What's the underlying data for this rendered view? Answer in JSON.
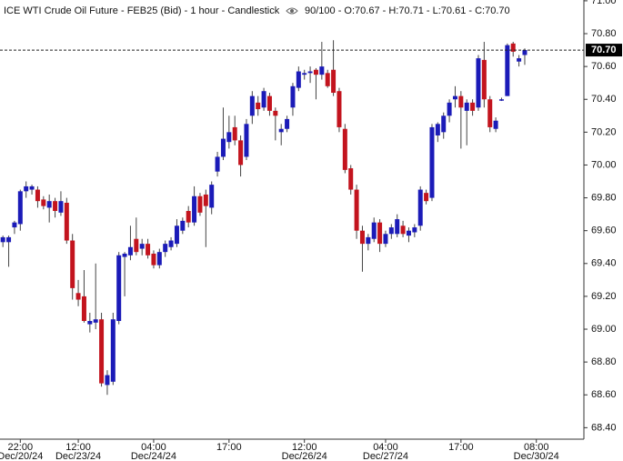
{
  "chart_data": {
    "type": "candlestick",
    "title": "ICE WTI Crude Oil Future - FEB25 (Bid) - 1 hour - Candlestick",
    "info": "90/100 - O:70.67 - H:70.71 - L:70.61 - C:70.70",
    "up_color": "#1b1bb8",
    "down_color": "#c3141e",
    "open": [
      69.53,
      69.53,
      69.62,
      69.64,
      69.84,
      69.85,
      69.85,
      69.79,
      69.74,
      69.78,
      69.71,
      69.77,
      69.54,
      69.22,
      69.2,
      69.03,
      69.04,
      69.06,
      68.66,
      68.68,
      69.05,
      69.44,
      69.45,
      69.55,
      69.49,
      69.52,
      69.46,
      69.39,
      69.47,
      69.5,
      69.52,
      69.6,
      69.72,
      69.65,
      69.81,
      69.82,
      69.74,
      69.96,
      70.05,
      70.14,
      70.23,
      70.15,
      70.05,
      70.3,
      70.38,
      70.35,
      70.42,
      70.33,
      70.2,
      70.22,
      70.35,
      70.47,
      70.55,
      70.56,
      70.58,
      70.55,
      70.56,
      70.58,
      70.45,
      70.22,
      69.98,
      69.85,
      69.6,
      69.52,
      69.55,
      69.65,
      69.52,
      69.58,
      69.58,
      69.63,
      69.57,
      69.59,
      69.63,
      69.83,
      69.8,
      70.18,
      70.2,
      70.3,
      70.4,
      70.42,
      70.33,
      70.38,
      70.35,
      70.64,
      70.4,
      70.22,
      70.395,
      70.42,
      70.74,
      70.63,
      70.67
    ],
    "high": [
      69.57,
      69.57,
      69.66,
      69.85,
      69.9,
      69.88,
      69.87,
      69.81,
      69.82,
      69.8,
      69.84,
      69.8,
      69.58,
      69.3,
      69.36,
      69.1,
      69.4,
      69.1,
      68.75,
      69.1,
      69.47,
      69.47,
      69.63,
      69.68,
      69.55,
      69.55,
      69.48,
      69.49,
      69.54,
      69.56,
      69.67,
      69.68,
      69.75,
      69.87,
      69.83,
      69.85,
      69.9,
      70.08,
      70.35,
      70.3,
      70.3,
      70.18,
      70.28,
      70.45,
      70.42,
      70.47,
      70.44,
      70.35,
      70.25,
      70.3,
      70.5,
      70.6,
      70.58,
      70.6,
      70.59,
      70.75,
      70.58,
      70.76,
      70.47,
      70.25,
      70.0,
      69.88,
      69.63,
      69.58,
      69.68,
      69.67,
      69.6,
      69.64,
      69.7,
      69.66,
      69.62,
      69.64,
      69.87,
      69.85,
      70.25,
      70.26,
      70.32,
      70.4,
      70.48,
      70.45,
      70.4,
      70.4,
      70.67,
      70.75,
      70.42,
      70.29,
      70.41,
      70.74,
      70.75,
      70.67,
      70.71
    ],
    "low": [
      69.5,
      69.38,
      69.58,
      69.6,
      69.8,
      69.82,
      69.74,
      69.73,
      69.65,
      69.68,
      69.69,
      69.52,
      69.18,
      69.14,
      69.04,
      68.98,
      69.0,
      68.65,
      68.6,
      68.66,
      69.03,
      69.2,
      69.42,
      69.45,
      69.45,
      69.43,
      69.37,
      69.37,
      69.44,
      69.48,
      69.5,
      69.58,
      69.62,
      69.63,
      69.69,
      69.5,
      69.7,
      69.93,
      70.03,
      70.1,
      70.12,
      69.93,
      70.03,
      70.25,
      70.3,
      70.33,
      70.3,
      70.15,
      70.12,
      70.2,
      70.3,
      70.45,
      70.52,
      70.5,
      70.4,
      70.52,
      70.47,
      70.42,
      70.2,
      69.95,
      69.82,
      69.55,
      69.35,
      69.48,
      69.53,
      69.47,
      69.5,
      69.55,
      69.56,
      69.56,
      69.53,
      69.56,
      69.6,
      69.76,
      69.78,
      70.14,
      70.16,
      70.26,
      70.35,
      70.1,
      70.12,
      70.3,
      70.33,
      70.35,
      70.2,
      70.2,
      70.39,
      70.42,
      70.66,
      70.6,
      70.61
    ],
    "close": [
      69.56,
      69.56,
      69.65,
      69.84,
      69.87,
      69.87,
      69.78,
      69.75,
      69.78,
      69.72,
      69.78,
      69.54,
      69.25,
      69.18,
      69.05,
      69.05,
      69.06,
      68.67,
      68.72,
      69.06,
      69.45,
      69.46,
      69.5,
      69.47,
      69.52,
      69.45,
      69.39,
      69.47,
      69.52,
      69.54,
      69.63,
      69.66,
      69.65,
      69.81,
      69.71,
      69.75,
      69.88,
      70.05,
      70.16,
      70.2,
      70.15,
      70.0,
      70.25,
      70.42,
      70.34,
      70.45,
      70.33,
      70.3,
      70.22,
      70.28,
      70.48,
      70.57,
      70.56,
      70.57,
      70.55,
      70.6,
      70.48,
      70.44,
      70.23,
      69.97,
      69.85,
      69.6,
      69.52,
      69.56,
      69.65,
      69.52,
      69.58,
      69.62,
      69.67,
      69.58,
      69.6,
      69.62,
      69.85,
      69.78,
      70.23,
      70.25,
      70.3,
      70.38,
      70.42,
      70.35,
      70.38,
      70.33,
      70.65,
      70.4,
      70.23,
      70.27,
      70.4,
      70.73,
      70.69,
      70.65,
      70.7
    ],
    "xlim": [
      -0.5,
      100.2
    ],
    "xticks": [
      {
        "value": 3,
        "label": "22:00",
        "date": "Dec/20/24"
      },
      {
        "value": 13,
        "label": "12:00",
        "date": "Dec/23/24"
      },
      {
        "value": 26,
        "label": "04:00",
        "date": "Dec/24/24"
      },
      {
        "value": 39,
        "label": "17:00"
      },
      {
        "value": 52,
        "label": "12:00",
        "date": "Dec/26/24"
      },
      {
        "value": 66,
        "label": "04:00",
        "date": "Dec/27/24"
      },
      {
        "value": 79,
        "label": "17:00"
      },
      {
        "value": 92,
        "label": "08:00",
        "date": "Dec/30/24"
      }
    ],
    "ylim": [
      68.33,
      71.005
    ],
    "yticks": [
      {
        "value": 68.4,
        "label": "68.40"
      },
      {
        "value": 68.6,
        "label": "68.60"
      },
      {
        "value": 68.8,
        "label": "68.80"
      },
      {
        "value": 69.0,
        "label": "69.00"
      },
      {
        "value": 69.2,
        "label": "69.20"
      },
      {
        "value": 69.4,
        "label": "69.40"
      },
      {
        "value": 69.6,
        "label": "69.60"
      },
      {
        "value": 69.8,
        "label": "69.80"
      },
      {
        "value": 70.0,
        "label": "70.00"
      },
      {
        "value": 70.2,
        "label": "70.20"
      },
      {
        "value": 70.4,
        "label": "70.40"
      },
      {
        "value": 70.6,
        "label": "70.60"
      },
      {
        "value": 70.8,
        "label": "70.80"
      },
      {
        "value": 71.0,
        "label": "71.00"
      }
    ],
    "last_price": {
      "value": 70.7,
      "label": "70.70"
    }
  }
}
